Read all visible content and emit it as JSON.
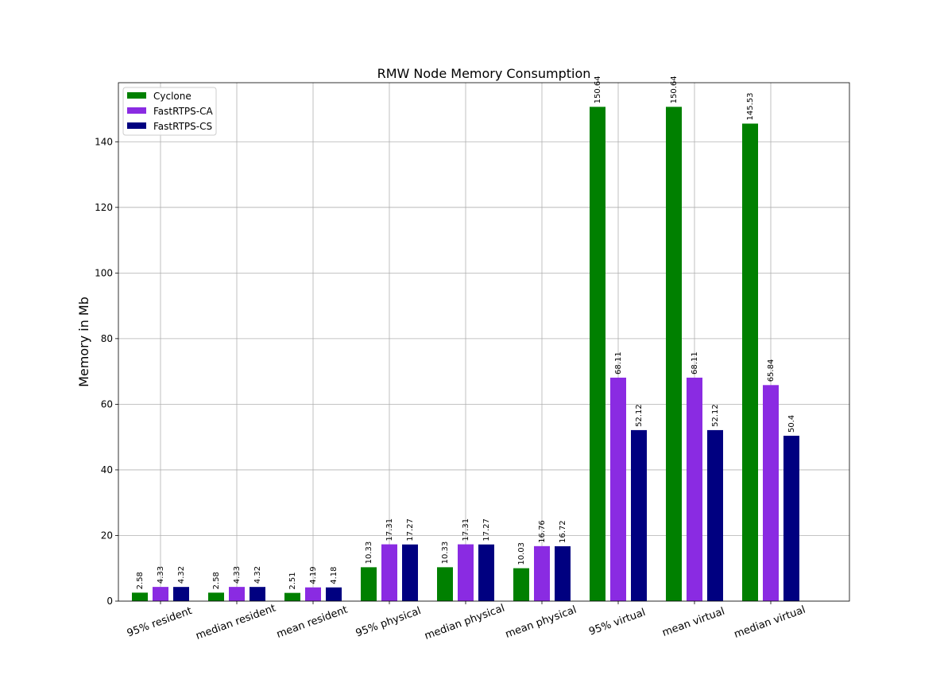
{
  "chart_data": {
    "type": "bar",
    "title": "RMW Node Memory Consumption",
    "xlabel": "",
    "ylabel": "Memory in Mb",
    "ylim": [
      0,
      158
    ],
    "yticks": [
      0,
      20,
      40,
      60,
      80,
      100,
      120,
      140
    ],
    "grid": true,
    "legend_position": "top-left",
    "categories": [
      "95% resident",
      "median resident",
      "mean resident",
      "95% physical",
      "median physical",
      "mean physical",
      "95% virtual",
      "mean virtual",
      "median virtual"
    ],
    "series": [
      {
        "name": "Cyclone",
        "color": "#008000",
        "values": [
          2.58,
          2.58,
          2.51,
          10.33,
          10.33,
          10.03,
          150.64,
          150.64,
          145.53
        ]
      },
      {
        "name": "FastRTPS-CA",
        "color": "#8a2be2",
        "values": [
          4.33,
          4.33,
          4.19,
          17.31,
          17.31,
          16.76,
          68.11,
          68.11,
          65.84
        ]
      },
      {
        "name": "FastRTPS-CS",
        "color": "#000080",
        "values": [
          4.32,
          4.32,
          4.18,
          17.27,
          17.27,
          16.72,
          52.12,
          52.12,
          50.4
        ]
      }
    ]
  }
}
